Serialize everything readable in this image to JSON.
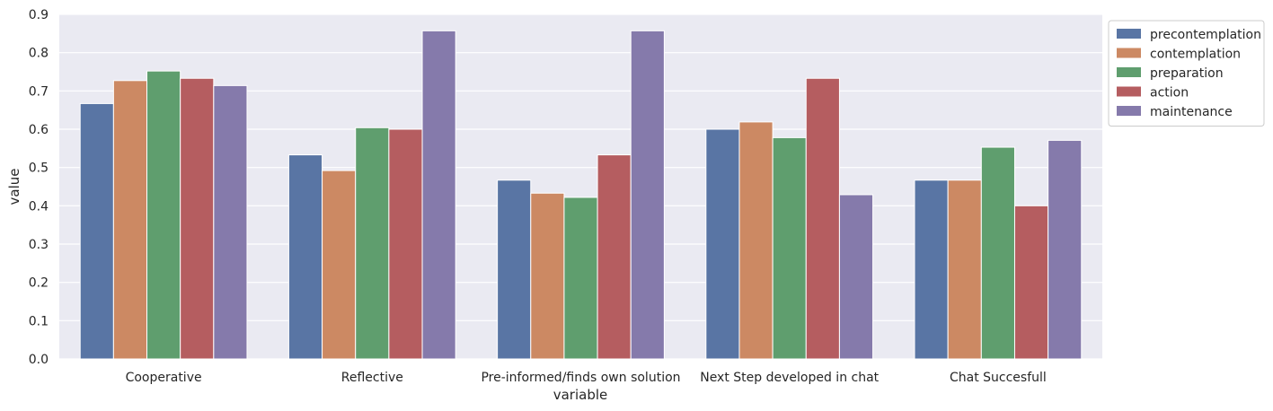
{
  "chart_data": {
    "type": "bar",
    "title": "",
    "xlabel": "variable",
    "ylabel": "value",
    "ylim": [
      0,
      0.9
    ],
    "yticks": [
      0,
      0.1,
      0.2,
      0.3,
      0.4,
      0.5,
      0.6,
      0.7,
      0.8,
      0.9
    ],
    "ytick_labels": [
      "0.0",
      "0.1",
      "0.2",
      "0.3",
      "0.4",
      "0.5",
      "0.6",
      "0.7",
      "0.8",
      "0.9"
    ],
    "grid": true,
    "legend_position": "outside top-right",
    "categories": [
      "Cooperative",
      "Reflective",
      "Pre-informed/finds own solution",
      "Next Step developed in chat",
      "Chat Succesfull"
    ],
    "series": [
      {
        "name": "precontemplation",
        "color": "#5975a4",
        "values": [
          0.667,
          0.533,
          0.467,
          0.6,
          0.467
        ]
      },
      {
        "name": "contemplation",
        "color": "#cc8963",
        "values": [
          0.727,
          0.492,
          0.433,
          0.619,
          0.467
        ]
      },
      {
        "name": "preparation",
        "color": "#5f9e6e",
        "values": [
          0.752,
          0.604,
          0.422,
          0.578,
          0.553
        ]
      },
      {
        "name": "action",
        "color": "#b55d60",
        "values": [
          0.733,
          0.6,
          0.533,
          0.733,
          0.4
        ]
      },
      {
        "name": "maintenance",
        "color": "#857aab",
        "values": [
          0.714,
          0.857,
          0.857,
          0.429,
          0.571
        ]
      }
    ]
  },
  "colors": {
    "plot_background": "#eaeaf2",
    "grid": "#ffffff"
  }
}
